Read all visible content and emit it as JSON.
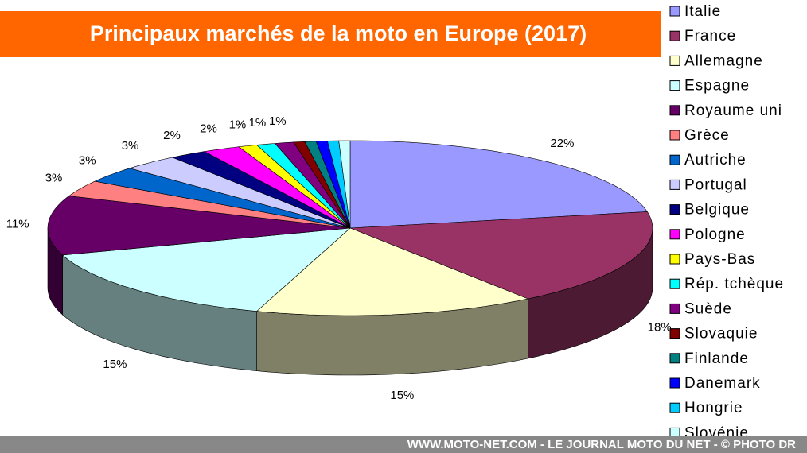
{
  "chart_data": {
    "type": "pie3d",
    "title": "Principaux marchés de la moto en Europe (2017)",
    "categories": [
      "Italie",
      "France",
      "Allemagne",
      "Espagne",
      "Royaume uni",
      "Grèce",
      "Autriche",
      "Portugal",
      "Belgique",
      "Pologne",
      "Pays-Bas",
      "Rép. tchèque",
      "Suède",
      "Slovaquie",
      "Finlande",
      "Danemark",
      "Hongrie",
      "Slovénie"
    ],
    "values": [
      22,
      18,
      15,
      15,
      11,
      3,
      3,
      3,
      2,
      2,
      1,
      1,
      1,
      0.6,
      0.6,
      0.6,
      0.6,
      0.6
    ],
    "value_labels": [
      "22%",
      "18%",
      "15%",
      "15%",
      "11%",
      "3%",
      "3%",
      "3%",
      "2%",
      "2%",
      "1%",
      "1%",
      "1%",
      null,
      null,
      null,
      null,
      null
    ],
    "colors": [
      "#9999ff",
      "#993366",
      "#ffffcc",
      "#ccffff",
      "#660066",
      "#ff8080",
      "#0066cc",
      "#ccccff",
      "#000080",
      "#ff00ff",
      "#ffff00",
      "#00ffff",
      "#800080",
      "#800000",
      "#008080",
      "#0000ff",
      "#00ccff",
      "#ccffff"
    ],
    "legend": "right"
  },
  "footer": "WWW.MOTO-NET.COM - LE JOURNAL MOTO DU NET - © PHOTO DR"
}
